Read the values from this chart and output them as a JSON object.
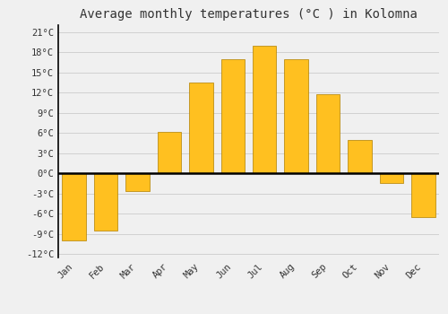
{
  "title": "Average monthly temperatures (°C ) in Kolomna",
  "months": [
    "Jan",
    "Feb",
    "Mar",
    "Apr",
    "May",
    "Jun",
    "Jul",
    "Aug",
    "Sep",
    "Oct",
    "Nov",
    "Dec"
  ],
  "values": [
    -10,
    -8.5,
    -2.7,
    6.2,
    13.5,
    17.0,
    19.0,
    17.0,
    11.8,
    5.0,
    -1.5,
    -6.5
  ],
  "bar_color": "#FFC020",
  "bar_edge_color": "#B08000",
  "yticks": [
    -12,
    -9,
    -6,
    -3,
    0,
    3,
    6,
    9,
    12,
    15,
    18,
    21
  ],
  "ytick_labels": [
    "-12°C",
    "-9°C",
    "-6°C",
    "-3°C",
    "0°C",
    "3°C",
    "6°C",
    "9°C",
    "12°C",
    "15°C",
    "18°C",
    "21°C"
  ],
  "ylim": [
    -12.5,
    22
  ],
  "grid_color": "#cccccc",
  "background_color": "#f0f0f0",
  "zero_line_color": "#000000",
  "title_fontsize": 10,
  "tick_fontsize": 7.5,
  "bar_width": 0.75
}
